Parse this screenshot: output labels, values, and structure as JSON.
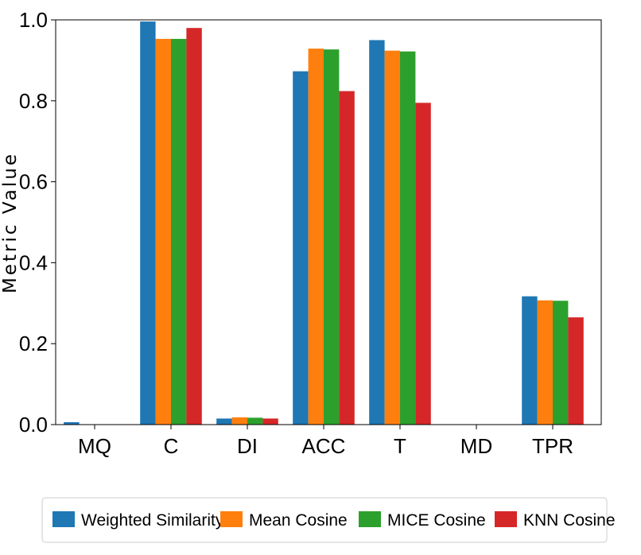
{
  "chart_data": {
    "type": "bar",
    "title": "",
    "xlabel": "",
    "ylabel": "Metric Value",
    "ylim": [
      0,
      1.0
    ],
    "yticks": [
      "0.0",
      "0.2",
      "0.4",
      "0.6",
      "0.8",
      "1.0"
    ],
    "categories": [
      "MQ",
      "C",
      "DI",
      "ACC",
      "T",
      "MD",
      "TPR"
    ],
    "series": [
      {
        "name": "Weighted Similarity",
        "color": "#1f77b4",
        "values": [
          0.006,
          0.996,
          0.015,
          0.873,
          0.95,
          0.001,
          0.317
        ]
      },
      {
        "name": "Mean Cosine",
        "color": "#ff7f0e",
        "values": [
          0.001,
          0.953,
          0.018,
          0.929,
          0.924,
          0.0,
          0.307
        ]
      },
      {
        "name": "MICE Cosine",
        "color": "#2ca02c",
        "values": [
          0.0,
          0.953,
          0.017,
          0.927,
          0.922,
          0.0,
          0.306
        ]
      },
      {
        "name": "KNN Cosine",
        "color": "#d62728",
        "values": [
          0.0,
          0.98,
          0.015,
          0.824,
          0.795,
          0.0,
          0.265
        ]
      }
    ],
    "legend_position": "bottom-center",
    "grid": false
  }
}
